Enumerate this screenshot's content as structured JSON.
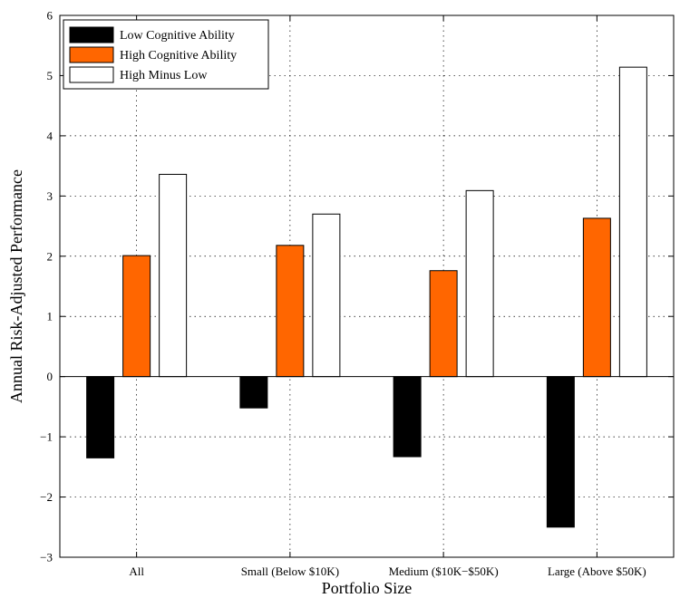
{
  "chart_data": {
    "type": "bar",
    "title": "",
    "xlabel": "Portfolio Size",
    "ylabel": "Annual Risk-Adjusted Performance",
    "categories": [
      "All",
      "Small (Below $10K)",
      "Medium ($10K−$50K)",
      "Large (Above $50K)"
    ],
    "series": [
      {
        "name": "Low Cognitive Ability",
        "values": [
          -1.35,
          -0.52,
          -1.33,
          -2.5
        ],
        "color": "#000000"
      },
      {
        "name": "High Cognitive Ability",
        "values": [
          2.01,
          2.18,
          1.76,
          2.63
        ],
        "color": "#ff6600"
      },
      {
        "name": "High Minus Low",
        "values": [
          3.36,
          2.7,
          3.09,
          5.14
        ],
        "color": "#ffffff"
      }
    ],
    "ylim": [
      -3,
      6
    ],
    "yticks": [
      "−3",
      "−2",
      "−1",
      "0",
      "1",
      "2",
      "3",
      "4",
      "5",
      "6"
    ],
    "grid": true,
    "legend": "top-left"
  }
}
